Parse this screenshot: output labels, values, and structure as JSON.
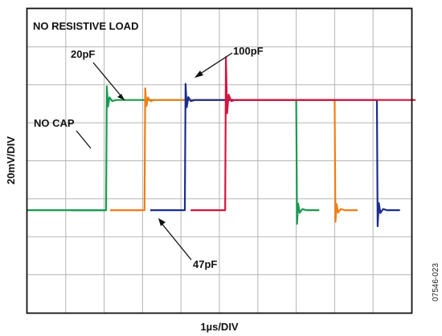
{
  "chart_data": {
    "type": "line",
    "title": "NO RESISTIVE LOAD",
    "xlabel": "1µs/DIV",
    "ylabel": "20mV/DIV",
    "figure_id": "07546-023",
    "grid": true,
    "xlim": [
      0,
      10
    ],
    "ylim": [
      0,
      8
    ],
    "baseline": 2.7,
    "high": 5.6,
    "series": [
      {
        "name": "NO CAP",
        "color": "#1a9a4e",
        "rise": 2.05,
        "fall": 7.0,
        "ring": 0.2,
        "delay": 0.0
      },
      {
        "name": "20pF",
        "color": "#f07e14",
        "rise": 3.05,
        "fall": 8.0,
        "ring": 0.12,
        "delay": 0.05
      },
      {
        "name": "47pF",
        "color": "#1c2d8c",
        "rise": 4.1,
        "fall": 9.1,
        "ring": 0.3,
        "delay": 0.05
      },
      {
        "name": "100pF",
        "color": "#d4153f",
        "rise": 5.15,
        "fall": 10.1,
        "ring": 1.4,
        "delay": 0.08
      }
    ],
    "annotations": [
      "NO CAP",
      "20pF",
      "47pF",
      "100pF"
    ]
  }
}
